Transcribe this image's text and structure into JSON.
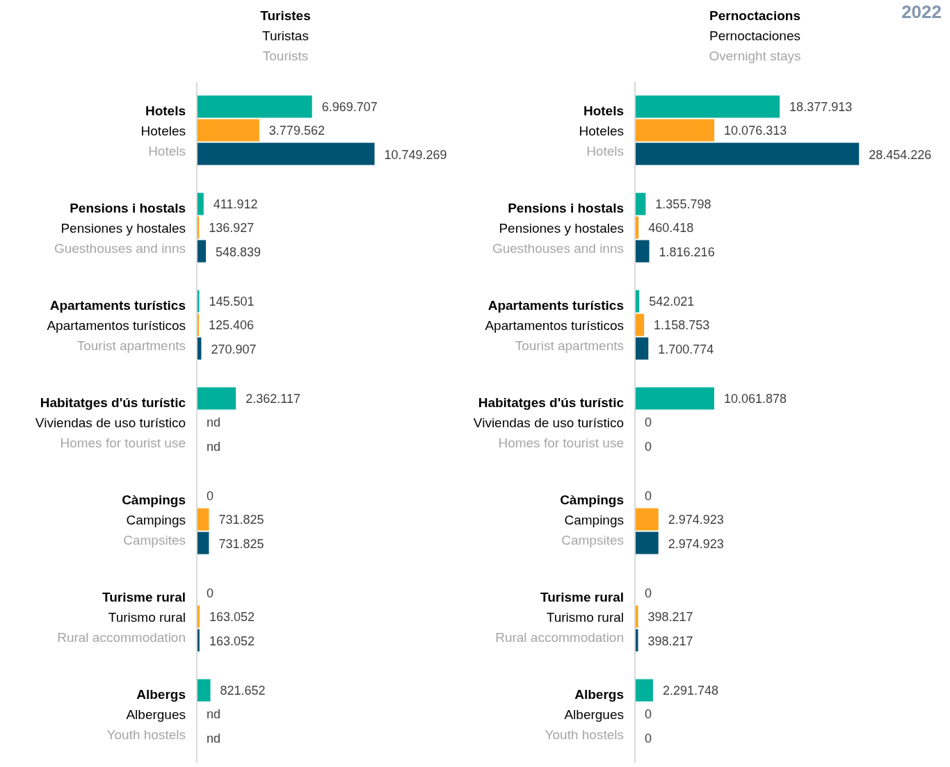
{
  "chart_data": [
    {
      "type": "bar",
      "orientation": "horizontal",
      "title": "Turistes\nTuristas\nTourists",
      "categories": [
        "Hotels\nHoteles\nHotels",
        "Pensions i hostals\nPensiones y hostales\nGuesthouses and inns",
        "Apartaments turístics\nApartamentos turísticos\nTourist apartments",
        "Habitatges d'ús turístic\nViviendas de uso turístico\nHomes for tourist use",
        "Càmpings\nCampings\nCampsites",
        "Turisme rural\nTurismo rural\nRural accommodation",
        "Albergs\nAlbergues\nYouth hostels"
      ],
      "series": [
        {
          "color": "#00b09b",
          "values": [
            6969707,
            411912,
            145501,
            2362117,
            0,
            0,
            821652
          ],
          "value_labels": [
            "6.969.707",
            "411.912",
            "145.501",
            "2.362.117",
            "0",
            "0",
            "821.652"
          ]
        },
        {
          "color": "#ffa31f",
          "values": [
            3779562,
            136927,
            125406,
            null,
            731825,
            163052,
            null
          ],
          "value_labels": [
            "3.779.562",
            "136.927",
            "125.406",
            "nd",
            "731.825",
            "163.052",
            "nd"
          ]
        },
        {
          "color": "#005373",
          "values": [
            10749269,
            548839,
            270907,
            null,
            731825,
            163052,
            null
          ],
          "value_labels": [
            "10.749.269",
            "548.839",
            "270.907",
            "nd",
            "731.825",
            "163.052",
            "nd"
          ]
        }
      ]
    },
    {
      "type": "bar",
      "orientation": "horizontal",
      "title": "Pernoctacions\nPernoctaciones\nOvernight stays",
      "annotations": [
        "2022"
      ],
      "categories": [
        "Hotels\nHoteles\nHotels",
        "Pensions i hostals\nPensiones y hostales\nGuesthouses and inns",
        "Apartaments turístics\nApartamentos turísticos\nTourist apartments",
        "Habitatges d'ús turístic\nViviendas de uso turístico\nHomes for tourist use",
        "Càmpings\nCampings\nCampsites",
        "Turisme rural\nTurismo rural\nRural accommodation",
        "Albergs\nAlbergues\nYouth hostels"
      ],
      "series": [
        {
          "color": "#00b09b",
          "values": [
            18377913,
            1355798,
            542021,
            10061878,
            0,
            0,
            2291748
          ],
          "value_labels": [
            "18.377.913",
            "1.355.798",
            "542.021",
            "10.061.878",
            "0",
            "0",
            "2.291.748"
          ]
        },
        {
          "color": "#ffa31f",
          "values": [
            10076313,
            460418,
            1158753,
            0,
            2974923,
            398217,
            0
          ],
          "value_labels": [
            "10.076.313",
            "460.418",
            "1.158.753",
            "0",
            "2.974.923",
            "398.217",
            "0"
          ]
        },
        {
          "color": "#005373",
          "values": [
            28454226,
            1816216,
            1700774,
            0,
            2974923,
            398217,
            0
          ],
          "value_labels": [
            "28.454.226",
            "1.816.216",
            "1.700.774",
            "0",
            "2.974.923",
            "398.217",
            "0"
          ]
        }
      ]
    }
  ]
}
